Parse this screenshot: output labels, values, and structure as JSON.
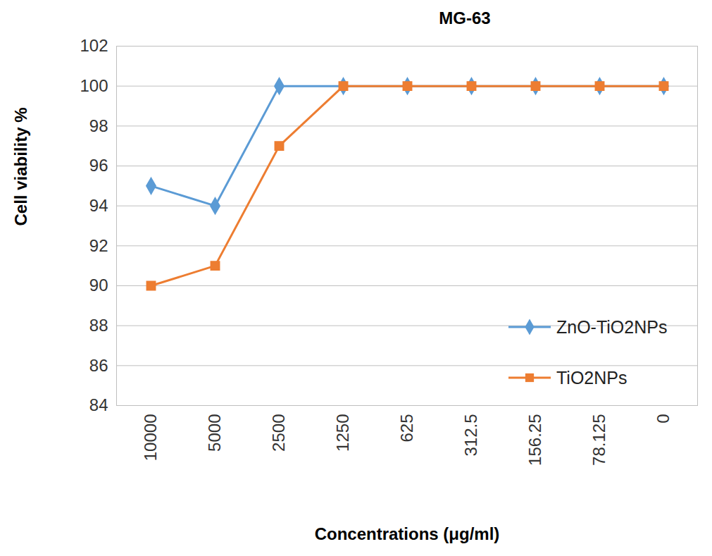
{
  "chart_data": {
    "type": "line",
    "title": "MG-63",
    "x_label": "Concentrations (μg/ml)",
    "y_label": "Cell viability %",
    "categories": [
      "10000",
      "5000",
      "2500",
      "1250",
      "625",
      "312.5",
      "156.25",
      "78.125",
      "0"
    ],
    "series": [
      {
        "name": "ZnO-TiO2NPs",
        "color": "#5b9bd5",
        "marker": "diamond",
        "values": [
          95,
          94,
          100,
          100,
          100,
          100,
          100,
          100,
          100
        ]
      },
      {
        "name": "TiO2NPs",
        "color": "#ed7d31",
        "marker": "square",
        "values": [
          90,
          91,
          97,
          100,
          100,
          100,
          100,
          100,
          100
        ]
      }
    ],
    "ylim": [
      84,
      102
    ],
    "yticks": [
      84,
      86,
      88,
      90,
      92,
      94,
      96,
      98,
      100,
      102
    ],
    "grid": true,
    "legend": "center right"
  }
}
